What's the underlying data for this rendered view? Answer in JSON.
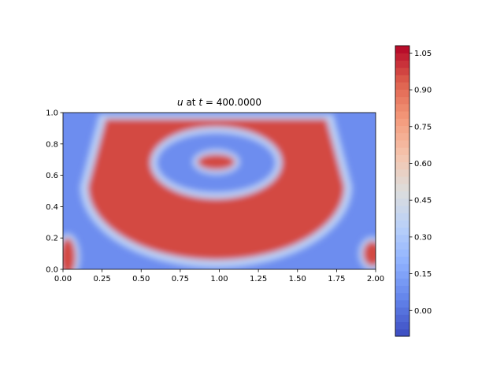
{
  "chart_data": {
    "type": "heatmap",
    "title": {
      "prefix": "u",
      "middle": " at ",
      "var": "t",
      "suffix": " = 400.0000"
    },
    "xlabel": "",
    "ylabel": "",
    "xlim": [
      0.0,
      2.0
    ],
    "ylim": [
      0.0,
      1.0
    ],
    "x_ticks": [
      "0.00",
      "0.25",
      "0.50",
      "0.75",
      "1.00",
      "1.25",
      "1.50",
      "1.75",
      "2.00"
    ],
    "y_ticks": [
      "0.0",
      "0.2",
      "0.4",
      "0.6",
      "0.8",
      "1.0"
    ],
    "colormap": "coolwarm",
    "colorbar": {
      "vmin": -0.105,
      "vmax": 1.08,
      "ticks": [
        "0.00",
        "0.15",
        "0.30",
        "0.45",
        "0.60",
        "0.75",
        "0.90",
        "1.05"
      ],
      "tick_values": [
        0.0,
        0.15,
        0.3,
        0.45,
        0.6,
        0.75,
        0.9,
        1.05
      ]
    },
    "field_description": {
      "background_value": 0.08,
      "high_value": 0.97,
      "annulus": {
        "center": [
          0.98,
          0.53
        ],
        "outer_radii": [
          0.82,
          0.47
        ],
        "inner_radii": [
          0.38,
          0.19
        ],
        "outer_top": 0.96
      },
      "center_blob": {
        "center": [
          0.98,
          0.685
        ],
        "radii": [
          0.12,
          0.05
        ]
      },
      "corner_blobs": [
        {
          "center": [
            0.03,
            0.08
          ],
          "radii": [
            0.05,
            0.12
          ]
        },
        {
          "center": [
            1.98,
            0.1
          ],
          "radii": [
            0.06,
            0.08
          ]
        }
      ]
    }
  }
}
